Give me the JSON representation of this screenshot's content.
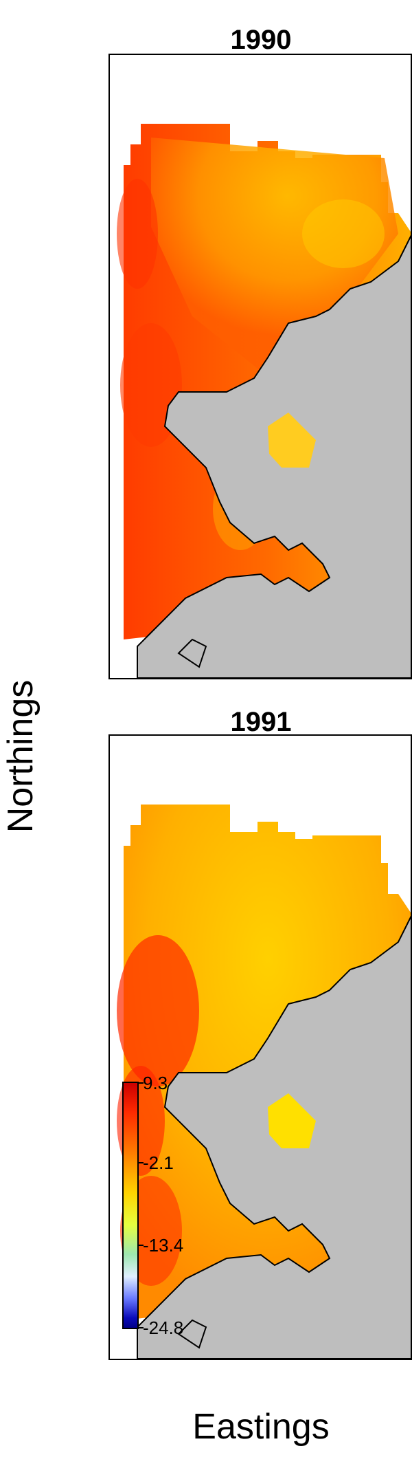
{
  "panels": [
    {
      "title": "1990"
    },
    {
      "title": "1991"
    }
  ],
  "axes": {
    "xlabel": "Eastings",
    "ylabel": "Northings"
  },
  "colorbar": {
    "labels": [
      "9.3",
      "-2.1",
      "-13.4",
      "-24.8"
    ],
    "colors": [
      "#cc0000",
      "#ff2a00",
      "#ff7a00",
      "#ffd400",
      "#e6ff40",
      "#9de8b0",
      "#e0f0ff",
      "#6a7aff",
      "#0a0ab8",
      "#000088"
    ]
  },
  "colors": {
    "land": "#bebebe",
    "coastline": "#000000"
  }
}
